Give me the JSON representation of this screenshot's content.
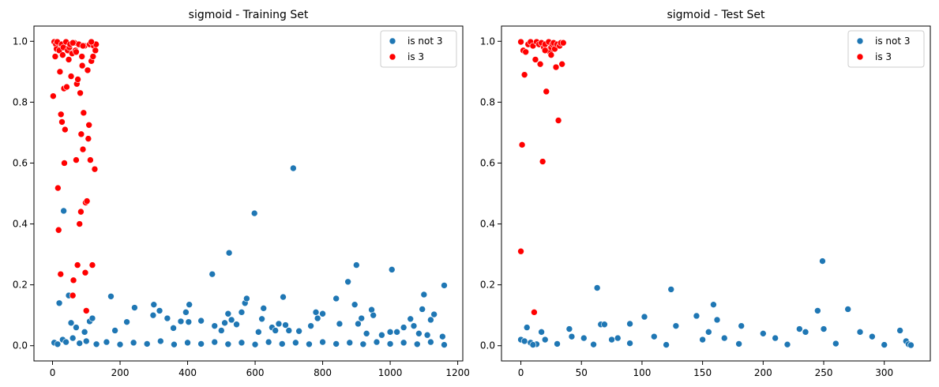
{
  "chart_data": [
    {
      "type": "scatter",
      "title": "sigmoid - Training Set",
      "xlabel": "",
      "ylabel": "",
      "xlim": [
        -55,
        1215
      ],
      "ylim": [
        -0.05,
        1.05
      ],
      "xticks": [
        0,
        200,
        400,
        600,
        800,
        1000,
        1200
      ],
      "xtick_labels": [
        "0",
        "200",
        "400",
        "600",
        "800",
        "1000",
        "1200"
      ],
      "yticks": [
        0.0,
        0.2,
        0.4,
        0.6,
        0.8,
        1.0
      ],
      "ytick_labels": [
        "0.0",
        "0.2",
        "0.4",
        "0.6",
        "0.8",
        "1.0"
      ],
      "grid": false,
      "legend_position": "top-right",
      "series": [
        {
          "name": "is not 3",
          "color": "#1f77b4",
          "points": [
            [
              20,
              0.14
            ],
            [
              33,
              0.443
            ],
            [
              48,
              0.165
            ],
            [
              55,
              0.075
            ],
            [
              70,
              0.06
            ],
            [
              95,
              0.045
            ],
            [
              110,
              0.08
            ],
            [
              118,
              0.09
            ],
            [
              173,
              0.162
            ],
            [
              185,
              0.05
            ],
            [
              220,
              0.078
            ],
            [
              243,
              0.125
            ],
            [
              298,
              0.1
            ],
            [
              300,
              0.135
            ],
            [
              317,
              0.115
            ],
            [
              340,
              0.09
            ],
            [
              358,
              0.058
            ],
            [
              380,
              0.08
            ],
            [
              395,
              0.11
            ],
            [
              405,
              0.135
            ],
            [
              403,
              0.078
            ],
            [
              440,
              0.082
            ],
            [
              473,
              0.235
            ],
            [
              480,
              0.065
            ],
            [
              500,
              0.05
            ],
            [
              510,
              0.075
            ],
            [
              520,
              0.105
            ],
            [
              523,
              0.305
            ],
            [
              530,
              0.085
            ],
            [
              545,
              0.07
            ],
            [
              560,
              0.11
            ],
            [
              570,
              0.14
            ],
            [
              575,
              0.155
            ],
            [
              598,
              0.435
            ],
            [
              610,
              0.045
            ],
            [
              620,
              0.088
            ],
            [
              625,
              0.123
            ],
            [
              650,
              0.06
            ],
            [
              660,
              0.05
            ],
            [
              670,
              0.072
            ],
            [
              683,
              0.16
            ],
            [
              690,
              0.068
            ],
            [
              700,
              0.05
            ],
            [
              713,
              0.583
            ],
            [
              730,
              0.048
            ],
            [
              765,
              0.065
            ],
            [
              780,
              0.11
            ],
            [
              785,
              0.09
            ],
            [
              800,
              0.105
            ],
            [
              840,
              0.155
            ],
            [
              850,
              0.072
            ],
            [
              875,
              0.21
            ],
            [
              895,
              0.135
            ],
            [
              900,
              0.265
            ],
            [
              905,
              0.072
            ],
            [
              915,
              0.09
            ],
            [
              930,
              0.04
            ],
            [
              945,
              0.118
            ],
            [
              950,
              0.1
            ],
            [
              975,
              0.035
            ],
            [
              1000,
              0.045
            ],
            [
              1005,
              0.25
            ],
            [
              1020,
              0.045
            ],
            [
              1040,
              0.06
            ],
            [
              1060,
              0.088
            ],
            [
              1070,
              0.065
            ],
            [
              1085,
              0.04
            ],
            [
              1095,
              0.12
            ],
            [
              1100,
              0.168
            ],
            [
              1110,
              0.035
            ],
            [
              1120,
              0.085
            ],
            [
              1130,
              0.103
            ],
            [
              1155,
              0.03
            ],
            [
              1160,
              0.198
            ],
            [
              5,
              0.01
            ],
            [
              15,
              0.005
            ],
            [
              30,
              0.02
            ],
            [
              40,
              0.012
            ],
            [
              60,
              0.025
            ],
            [
              80,
              0.008
            ],
            [
              100,
              0.015
            ],
            [
              130,
              0.005
            ],
            [
              160,
              0.012
            ],
            [
              200,
              0.004
            ],
            [
              240,
              0.01
            ],
            [
              280,
              0.006
            ],
            [
              320,
              0.015
            ],
            [
              360,
              0.004
            ],
            [
              400,
              0.01
            ],
            [
              440,
              0.006
            ],
            [
              480,
              0.012
            ],
            [
              520,
              0.005
            ],
            [
              560,
              0.01
            ],
            [
              600,
              0.004
            ],
            [
              640,
              0.012
            ],
            [
              680,
              0.006
            ],
            [
              720,
              0.01
            ],
            [
              760,
              0.005
            ],
            [
              800,
              0.012
            ],
            [
              840,
              0.006
            ],
            [
              880,
              0.01
            ],
            [
              920,
              0.005
            ],
            [
              960,
              0.012
            ],
            [
              1000,
              0.006
            ],
            [
              1040,
              0.01
            ],
            [
              1080,
              0.005
            ],
            [
              1120,
              0.012
            ],
            [
              1160,
              0.003
            ]
          ]
        },
        {
          "name": "is 3",
          "color": "#ff0000",
          "points": [
            [
              2,
              0.82
            ],
            [
              5,
              0.998
            ],
            [
              8,
              0.95
            ],
            [
              10,
              0.99
            ],
            [
              12,
              0.975
            ],
            [
              14,
              0.998
            ],
            [
              16,
              0.518
            ],
            [
              18,
              0.38
            ],
            [
              20,
              0.97
            ],
            [
              22,
              0.9
            ],
            [
              24,
              0.235
            ],
            [
              25,
              0.76
            ],
            [
              27,
              0.99
            ],
            [
              28,
              0.735
            ],
            [
              30,
              0.955
            ],
            [
              32,
              0.98
            ],
            [
              34,
              0.845
            ],
            [
              35,
              0.6
            ],
            [
              37,
              0.71
            ],
            [
              40,
              0.998
            ],
            [
              42,
              0.85
            ],
            [
              45,
              0.97
            ],
            [
              48,
              0.94
            ],
            [
              50,
              0.98
            ],
            [
              52,
              0.99
            ],
            [
              55,
              0.885
            ],
            [
              58,
              0.96
            ],
            [
              60,
              0.165
            ],
            [
              62,
              0.215
            ],
            [
              65,
              0.995
            ],
            [
              68,
              0.97
            ],
            [
              70,
              0.61
            ],
            [
              72,
              0.86
            ],
            [
              74,
              0.265
            ],
            [
              75,
              0.875
            ],
            [
              78,
              0.99
            ],
            [
              80,
              0.4
            ],
            [
              82,
              0.83
            ],
            [
              84,
              0.44
            ],
            [
              85,
              0.695
            ],
            [
              87,
              0.95
            ],
            [
              88,
              0.92
            ],
            [
              90,
              0.645
            ],
            [
              92,
              0.765
            ],
            [
              95,
              0.985
            ],
            [
              97,
              0.24
            ],
            [
              98,
              0.47
            ],
            [
              100,
              0.115
            ],
            [
              102,
              0.475
            ],
            [
              104,
              0.905
            ],
            [
              106,
              0.68
            ],
            [
              108,
              0.725
            ],
            [
              110,
              0.99
            ],
            [
              112,
              0.61
            ],
            [
              115,
              0.935
            ],
            [
              118,
              0.265
            ],
            [
              120,
              0.95
            ],
            [
              122,
              0.985
            ],
            [
              125,
              0.58
            ],
            [
              127,
              0.97
            ],
            [
              129,
              0.99
            ],
            [
              60,
              0.995
            ],
            [
              90,
              0.985
            ],
            [
              115,
              0.998
            ],
            [
              70,
              0.965
            ]
          ]
        }
      ]
    },
    {
      "type": "scatter",
      "title": "sigmoid - Test Set",
      "xlabel": "",
      "ylabel": "",
      "xlim": [
        -16,
        338
      ],
      "ylim": [
        -0.05,
        1.05
      ],
      "xticks": [
        0,
        50,
        100,
        150,
        200,
        250,
        300
      ],
      "xtick_labels": [
        "0",
        "50",
        "100",
        "150",
        "200",
        "250",
        "300"
      ],
      "yticks": [
        0.0,
        0.2,
        0.4,
        0.6,
        0.8,
        1.0
      ],
      "ytick_labels": [
        "0.0",
        "0.2",
        "0.4",
        "0.6",
        "0.8",
        "1.0"
      ],
      "grid": false,
      "legend_position": "top-right",
      "series": [
        {
          "name": "is not 3",
          "color": "#1f77b4",
          "points": [
            [
              0,
              0.02
            ],
            [
              3,
              0.015
            ],
            [
              5,
              0.06
            ],
            [
              8,
              0.01
            ],
            [
              13,
              0.005
            ],
            [
              17,
              0.045
            ],
            [
              20,
              0.02
            ],
            [
              40,
              0.055
            ],
            [
              42,
              0.03
            ],
            [
              52,
              0.025
            ],
            [
              63,
              0.19
            ],
            [
              66,
              0.07
            ],
            [
              69,
              0.07
            ],
            [
              75,
              0.02
            ],
            [
              80,
              0.025
            ],
            [
              90,
              0.072
            ],
            [
              102,
              0.095
            ],
            [
              110,
              0.03
            ],
            [
              124,
              0.185
            ],
            [
              128,
              0.065
            ],
            [
              145,
              0.098
            ],
            [
              150,
              0.02
            ],
            [
              155,
              0.045
            ],
            [
              159,
              0.135
            ],
            [
              162,
              0.085
            ],
            [
              168,
              0.025
            ],
            [
              182,
              0.065
            ],
            [
              200,
              0.04
            ],
            [
              210,
              0.025
            ],
            [
              230,
              0.055
            ],
            [
              235,
              0.045
            ],
            [
              245,
              0.115
            ],
            [
              249,
              0.278
            ],
            [
              250,
              0.055
            ],
            [
              270,
              0.12
            ],
            [
              280,
              0.045
            ],
            [
              290,
              0.03
            ],
            [
              313,
              0.05
            ],
            [
              318,
              0.015
            ],
            [
              320,
              0.005
            ],
            [
              10,
              0.003
            ],
            [
              30,
              0.006
            ],
            [
              60,
              0.004
            ],
            [
              90,
              0.008
            ],
            [
              120,
              0.003
            ],
            [
              180,
              0.006
            ],
            [
              220,
              0.004
            ],
            [
              260,
              0.007
            ],
            [
              300,
              0.003
            ],
            [
              322,
              0.002
            ]
          ]
        },
        {
          "name": "is 3",
          "color": "#ff0000",
          "points": [
            [
              0,
              0.31
            ],
            [
              0,
              0.998
            ],
            [
              1,
              0.66
            ],
            [
              2,
              0.97
            ],
            [
              3,
              0.89
            ],
            [
              4,
              0.965
            ],
            [
              6,
              0.99
            ],
            [
              8,
              0.998
            ],
            [
              10,
              0.985
            ],
            [
              11,
              0.11
            ],
            [
              12,
              0.94
            ],
            [
              13,
              0.998
            ],
            [
              15,
              0.99
            ],
            [
              16,
              0.925
            ],
            [
              17,
              0.995
            ],
            [
              18,
              0.605
            ],
            [
              19,
              0.98
            ],
            [
              20,
              0.99
            ],
            [
              21,
              0.835
            ],
            [
              22,
              0.97
            ],
            [
              23,
              0.998
            ],
            [
              24,
              0.965
            ],
            [
              25,
              0.98
            ],
            [
              26,
              0.99
            ],
            [
              27,
              0.995
            ],
            [
              28,
              0.975
            ],
            [
              29,
              0.915
            ],
            [
              30,
              0.99
            ],
            [
              31,
              0.74
            ],
            [
              32,
              0.985
            ],
            [
              33,
              0.995
            ],
            [
              34,
              0.925
            ],
            [
              35,
              0.995
            ],
            [
              25,
              0.955
            ],
            [
              20,
              0.97
            ]
          ]
        }
      ]
    }
  ]
}
